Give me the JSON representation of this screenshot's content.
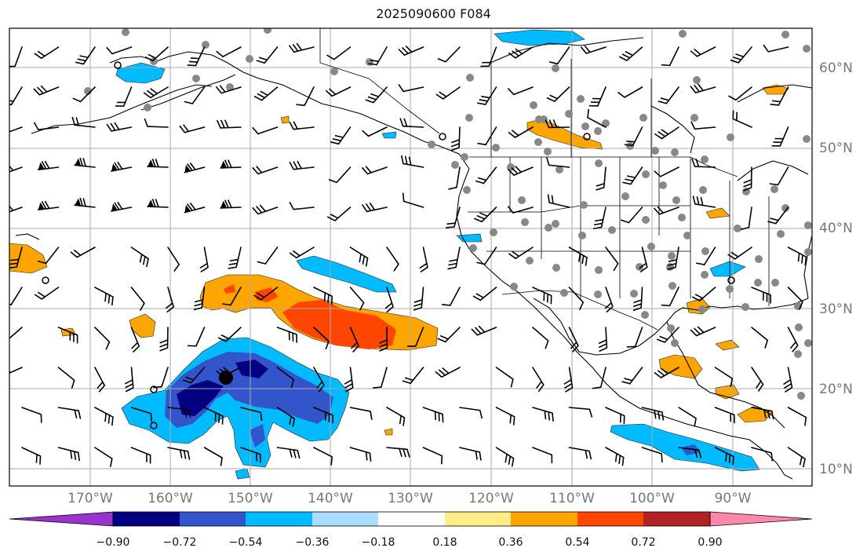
{
  "title": "2025090600 F084",
  "lon_labels": [
    "170°W",
    "160°W",
    "150°W",
    "140°W",
    "130°W",
    "120°W",
    "110°W",
    "100°W",
    "90°W"
  ],
  "lat_labels": [
    "60°N",
    "50°N",
    "40°N",
    "30°N",
    "20°N",
    "10°N"
  ],
  "colorbar": {
    "ticks": [
      "−0.90",
      "−0.72",
      "−0.54",
      "−0.36",
      "−0.18",
      "0.18",
      "0.36",
      "0.54",
      "0.72",
      "0.90"
    ],
    "colors": [
      "#9933cc",
      "#000080",
      "#3355cc",
      "#00bbff",
      "#aaddff",
      "#ffffff",
      "#ffee88",
      "#ffa500",
      "#ff4500",
      "#b22222",
      "#ff88aa"
    ]
  },
  "map": {
    "extent_lon": [
      -180,
      -80
    ],
    "extent_lat": [
      8,
      65
    ],
    "land_color": "#ffffff",
    "ocean_color": "#ffffff",
    "gridline_color": "#aaaaaa",
    "station_color": "#888888",
    "observation_marker_color": "#000000"
  }
}
